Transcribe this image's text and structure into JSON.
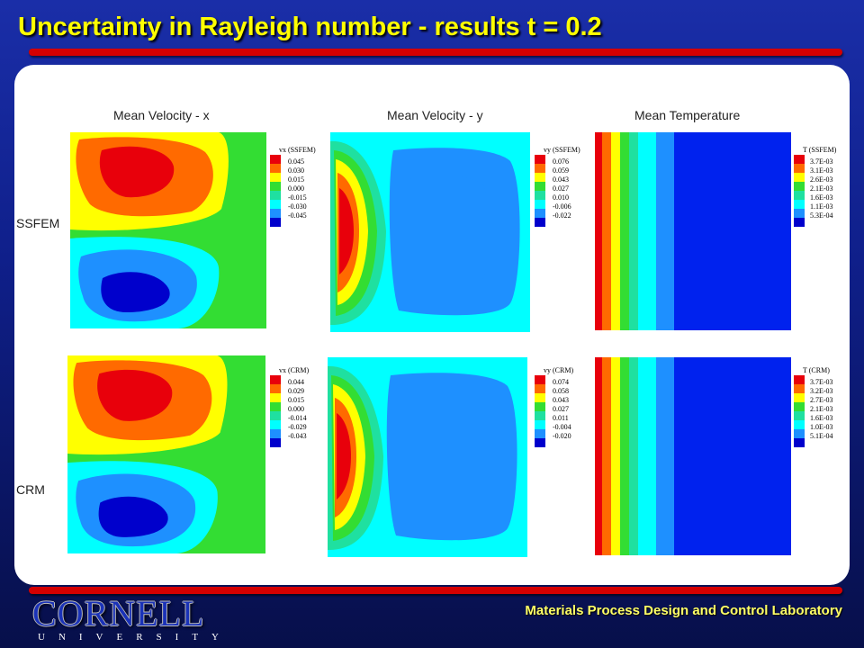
{
  "title": "Uncertainty in Rayleigh number - results t = 0.2",
  "columns": [
    "Mean Velocity - x",
    "Mean Velocity - y",
    "Mean Temperature"
  ],
  "rows": [
    "SSFEM",
    "CRM"
  ],
  "legend_colors": [
    "#e8000b",
    "#ff6a00",
    "#ffff00",
    "#33dd33",
    "#1fe0a0",
    "#00ffff",
    "#1e90ff",
    "#0000cc"
  ],
  "legends": {
    "ssfem_vx": {
      "title": "vx (SSFEM)",
      "values": [
        "0.045",
        "0.030",
        "0.015",
        "0.000",
        "-0.015",
        "-0.030",
        "-0.045"
      ]
    },
    "ssfem_vy": {
      "title": "vy (SSFEM)",
      "values": [
        "0.076",
        "0.059",
        "0.043",
        "0.027",
        "0.010",
        "-0.006",
        "-0.022"
      ]
    },
    "ssfem_T": {
      "title": "T (SSFEM)",
      "values": [
        "3.7E-03",
        "3.1E-03",
        "2.6E-03",
        "2.1E-03",
        "1.6E-03",
        "1.1E-03",
        "5.3E-04"
      ]
    },
    "crm_vx": {
      "title": "vx (CRM)",
      "values": [
        "0.044",
        "0.029",
        "0.015",
        "0.000",
        "-0.014",
        "-0.029",
        "-0.043"
      ]
    },
    "crm_vy": {
      "title": "vy (CRM)",
      "values": [
        "0.074",
        "0.058",
        "0.043",
        "0.027",
        "0.011",
        "-0.004",
        "-0.020"
      ]
    },
    "crm_T": {
      "title": "T (CRM)",
      "values": [
        "3.7E-03",
        "3.2E-03",
        "2.7E-03",
        "2.1E-03",
        "1.6E-03",
        "1.0E-03",
        "5.1E-04"
      ]
    }
  },
  "footer": "Materials Process Design and Control Laboratory",
  "logo": {
    "main": "CORNELL",
    "sub": "UNIVERSITY"
  }
}
